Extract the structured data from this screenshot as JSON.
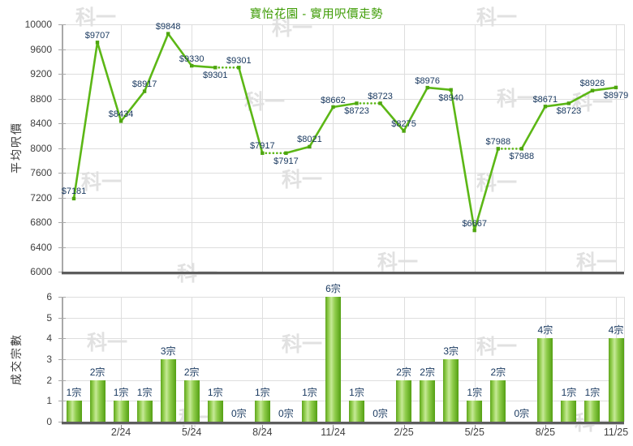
{
  "title": "寶怡花園 - 實用呎價走勢",
  "watermark": "科一",
  "colors": {
    "title": "#3f9c06",
    "line": "#5cb716",
    "marker": "#4ea50f",
    "data_label": "#17375e",
    "tick_label": "#404040",
    "axis_title": "#3a3a3a",
    "grid": "#dedede",
    "axis_line": "#a8a8a8",
    "axis_dark": "#5d5d5d",
    "watermark_color": "rgba(168,168,168,0.35)",
    "bar_gradient": [
      "#5ea51c",
      "#8fcc4b",
      "#c6e996",
      "#8fcc4b",
      "#54a013"
    ]
  },
  "chart_data": [
    {
      "id": "price_chart",
      "type": "line",
      "title": "寶怡花園 - 實用呎價走勢",
      "ylabel": "平均呎價",
      "ylim": [
        6000,
        10000
      ],
      "ytick_step": 400,
      "ytick_labels": [
        "10000",
        "9600",
        "9200",
        "8800",
        "8400",
        "8000",
        "7600",
        "7200",
        "6800",
        "6400",
        "6000"
      ],
      "grid": true,
      "legend": "none",
      "x_tick_positions": [
        2,
        5,
        8,
        11,
        14,
        17,
        20,
        23
      ],
      "x_tick_labels": [
        "2/24",
        "5/24",
        "8/24",
        "11/24",
        "2/25",
        "5/25",
        "8/25",
        "11/25"
      ],
      "series": [
        {
          "name": "平均呎價",
          "values": [
            7181,
            9707,
            8434,
            8917,
            9848,
            9330,
            9301,
            9301,
            7917,
            7917,
            8021,
            8662,
            8723,
            8723,
            8275,
            8976,
            8940,
            6667,
            7988,
            7988,
            8671,
            8723,
            8928,
            8979
          ],
          "point_labels": [
            "$7181",
            "$9707",
            "$8434",
            "$8917",
            "$9848",
            "$9330",
            "$9301",
            "$9301",
            "$7917",
            "$7917",
            "$8021",
            "$8662",
            "$8723",
            "$8723",
            "$8275",
            "$8976",
            "$8940",
            "$6667",
            "$7988",
            "$7988",
            "$8671",
            "$8723",
            "$8928",
            "$8979"
          ],
          "label_positions": [
            "above",
            "above",
            "above",
            "above",
            "above",
            "above",
            "below",
            "above",
            "above",
            "below",
            "above",
            "above",
            "below",
            "above",
            "above",
            "above",
            "below",
            "above",
            "above",
            "below",
            "above",
            "below",
            "above",
            "below"
          ]
        }
      ],
      "dotted_segment_rule": "segment drawn dotted when it enters a month whose transaction count is 0 (price carried over)"
    },
    {
      "id": "count_chart",
      "type": "bar",
      "ylabel": "成交宗數",
      "ylim": [
        0,
        6
      ],
      "ytick_step": 1,
      "ytick_labels": [
        "6",
        "5",
        "4",
        "3",
        "2",
        "1",
        "0"
      ],
      "grid": true,
      "legend": "none",
      "x_tick_positions": [
        2,
        5,
        8,
        11,
        14,
        17,
        20,
        23
      ],
      "x_tick_labels": [
        "2/24",
        "5/24",
        "8/24",
        "11/24",
        "2/25",
        "5/25",
        "8/25",
        "11/25"
      ],
      "values": [
        1,
        2,
        1,
        1,
        3,
        2,
        1,
        0,
        1,
        0,
        1,
        6,
        1,
        0,
        2,
        2,
        3,
        1,
        2,
        0,
        4,
        1,
        1,
        4
      ],
      "bar_labels": [
        "1宗",
        "2宗",
        "1宗",
        "1宗",
        "3宗",
        "2宗",
        "1宗",
        "0宗",
        "1宗",
        "0宗",
        "1宗",
        "6宗",
        "1宗",
        "0宗",
        "2宗",
        "2宗",
        "3宗",
        "1宗",
        "2宗",
        "0宗",
        "4宗",
        "1宗",
        "1宗",
        "4宗"
      ]
    }
  ]
}
